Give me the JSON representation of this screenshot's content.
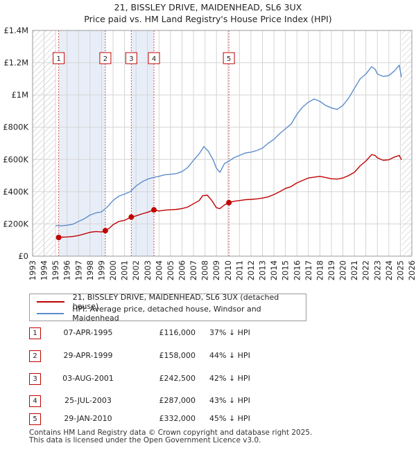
{
  "title_line1": "21, BISSLEY DRIVE, MAIDENHEAD, SL6 3UX",
  "title_line2": "Price paid vs. HM Land Registry's House Price Index (HPI)",
  "legend": {
    "property_label": "21, BISSLEY DRIVE, MAIDENHEAD, SL6 3UX (detached house)",
    "hpi_label": "HPI: Average price, detached house, Windsor and Maidenhead",
    "property_color": "#c00000",
    "hpi_color": "#5b8ccc"
  },
  "transactions": [
    {
      "num": "1",
      "date": "07-APR-1995",
      "price": "£116,000",
      "hpi": "37% ↓ HPI"
    },
    {
      "num": "2",
      "date": "29-APR-1999",
      "price": "£158,000",
      "hpi": "44% ↓ HPI"
    },
    {
      "num": "3",
      "date": "03-AUG-2001",
      "price": "£242,500",
      "hpi": "42% ↓ HPI"
    },
    {
      "num": "4",
      "date": "25-JUL-2003",
      "price": "£287,000",
      "hpi": "43% ↓ HPI"
    },
    {
      "num": "5",
      "date": "29-JAN-2010",
      "price": "£332,000",
      "hpi": "45% ↓ HPI"
    }
  ],
  "footer_line1": "Contains HM Land Registry data © Crown copyright and database right 2025.",
  "footer_line2": "This data is licensed under the Open Government Licence v3.0.",
  "chart_data": {
    "type": "line",
    "title": "21, BISSLEY DRIVE, MAIDENHEAD, SL6 3UX",
    "subtitle": "Price paid vs. HM Land Registry's House Price Index (HPI)",
    "xlim": [
      1993,
      2026
    ],
    "ylim": [
      0,
      1400000
    ],
    "x_ticks": [
      1993,
      1994,
      1995,
      1996,
      1997,
      1998,
      1999,
      2000,
      2001,
      2002,
      2003,
      2004,
      2005,
      2006,
      2007,
      2008,
      2009,
      2010,
      2011,
      2012,
      2013,
      2014,
      2015,
      2016,
      2017,
      2018,
      2019,
      2020,
      2021,
      2022,
      2023,
      2024,
      2025,
      2026
    ],
    "y_ticks": [
      0,
      200000,
      400000,
      600000,
      800000,
      1000000,
      1200000,
      1400000
    ],
    "y_tick_labels": [
      "£0",
      "£200K",
      "£400K",
      "£600K",
      "£800K",
      "£1M",
      "£1.2M",
      "£1.4M"
    ],
    "hatched_ranges": [
      [
        1993,
        1995.0
      ],
      [
        2025.1,
        2026
      ]
    ],
    "shaded_ranges": [
      [
        1995.27,
        1999.33
      ],
      [
        2001.59,
        2003.56
      ]
    ],
    "series": [
      {
        "name": "21, BISSLEY DRIVE, MAIDENHEAD, SL6 3UX (detached house)",
        "color": "#c00000",
        "points": [
          [
            1995.27,
            116000
          ],
          [
            1995.6,
            118000
          ],
          [
            1996.0,
            119000
          ],
          [
            1996.5,
            122000
          ],
          [
            1997.0,
            128000
          ],
          [
            1997.5,
            138000
          ],
          [
            1998.0,
            148000
          ],
          [
            1998.5,
            153000
          ],
          [
            1999.0,
            150000
          ],
          [
            1999.33,
            158000
          ],
          [
            1999.7,
            175000
          ],
          [
            2000.0,
            195000
          ],
          [
            2000.5,
            215000
          ],
          [
            2001.0,
            222000
          ],
          [
            2001.59,
            242500
          ],
          [
            2002.0,
            250000
          ],
          [
            2002.5,
            262000
          ],
          [
            2003.0,
            272000
          ],
          [
            2003.56,
            287000
          ],
          [
            2004.0,
            280000
          ],
          [
            2004.5,
            285000
          ],
          [
            2005.0,
            288000
          ],
          [
            2005.5,
            290000
          ],
          [
            2006.0,
            295000
          ],
          [
            2006.5,
            305000
          ],
          [
            2007.0,
            325000
          ],
          [
            2007.5,
            345000
          ],
          [
            2007.8,
            375000
          ],
          [
            2008.2,
            378000
          ],
          [
            2008.6,
            345000
          ],
          [
            2009.0,
            300000
          ],
          [
            2009.3,
            295000
          ],
          [
            2009.7,
            318000
          ],
          [
            2010.08,
            332000
          ],
          [
            2010.5,
            340000
          ],
          [
            2011.0,
            345000
          ],
          [
            2011.5,
            350000
          ],
          [
            2012.0,
            352000
          ],
          [
            2012.5,
            355000
          ],
          [
            2013.0,
            360000
          ],
          [
            2013.5,
            368000
          ],
          [
            2014.0,
            382000
          ],
          [
            2014.5,
            400000
          ],
          [
            2015.0,
            420000
          ],
          [
            2015.5,
            432000
          ],
          [
            2016.0,
            455000
          ],
          [
            2016.5,
            470000
          ],
          [
            2017.0,
            485000
          ],
          [
            2017.5,
            490000
          ],
          [
            2018.0,
            495000
          ],
          [
            2018.5,
            488000
          ],
          [
            2019.0,
            480000
          ],
          [
            2019.5,
            478000
          ],
          [
            2020.0,
            485000
          ],
          [
            2020.5,
            500000
          ],
          [
            2021.0,
            520000
          ],
          [
            2021.5,
            560000
          ],
          [
            2022.0,
            590000
          ],
          [
            2022.5,
            630000
          ],
          [
            2022.8,
            625000
          ],
          [
            2023.0,
            610000
          ],
          [
            2023.5,
            595000
          ],
          [
            2024.0,
            598000
          ],
          [
            2024.5,
            615000
          ],
          [
            2024.9,
            625000
          ],
          [
            2025.1,
            598000
          ]
        ]
      },
      {
        "name": "HPI: Average price, detached house, Windsor and Maidenhead",
        "color": "#5b8ccc",
        "points": [
          [
            1995.0,
            190000
          ],
          [
            1995.5,
            188000
          ],
          [
            1996.0,
            192000
          ],
          [
            1996.5,
            198000
          ],
          [
            1997.0,
            215000
          ],
          [
            1997.5,
            232000
          ],
          [
            1998.0,
            255000
          ],
          [
            1998.5,
            268000
          ],
          [
            1999.0,
            275000
          ],
          [
            1999.5,
            305000
          ],
          [
            2000.0,
            345000
          ],
          [
            2000.5,
            372000
          ],
          [
            2001.0,
            385000
          ],
          [
            2001.5,
            400000
          ],
          [
            2002.0,
            435000
          ],
          [
            2002.5,
            460000
          ],
          [
            2003.0,
            478000
          ],
          [
            2003.5,
            488000
          ],
          [
            2004.0,
            495000
          ],
          [
            2004.5,
            505000
          ],
          [
            2005.0,
            508000
          ],
          [
            2005.5,
            512000
          ],
          [
            2006.0,
            525000
          ],
          [
            2006.5,
            550000
          ],
          [
            2007.0,
            595000
          ],
          [
            2007.5,
            635000
          ],
          [
            2007.9,
            680000
          ],
          [
            2008.3,
            650000
          ],
          [
            2008.7,
            600000
          ],
          [
            2009.0,
            545000
          ],
          [
            2009.3,
            520000
          ],
          [
            2009.7,
            575000
          ],
          [
            2010.1,
            590000
          ],
          [
            2010.5,
            610000
          ],
          [
            2011.0,
            625000
          ],
          [
            2011.5,
            640000
          ],
          [
            2012.0,
            645000
          ],
          [
            2012.5,
            655000
          ],
          [
            2013.0,
            670000
          ],
          [
            2013.5,
            700000
          ],
          [
            2014.0,
            725000
          ],
          [
            2014.5,
            760000
          ],
          [
            2015.0,
            790000
          ],
          [
            2015.5,
            820000
          ],
          [
            2016.0,
            880000
          ],
          [
            2016.5,
            925000
          ],
          [
            2017.0,
            955000
          ],
          [
            2017.5,
            975000
          ],
          [
            2018.0,
            960000
          ],
          [
            2018.5,
            935000
          ],
          [
            2019.0,
            920000
          ],
          [
            2019.5,
            910000
          ],
          [
            2020.0,
            935000
          ],
          [
            2020.5,
            980000
          ],
          [
            2021.0,
            1040000
          ],
          [
            2021.5,
            1100000
          ],
          [
            2022.0,
            1130000
          ],
          [
            2022.5,
            1175000
          ],
          [
            2022.8,
            1160000
          ],
          [
            2023.0,
            1130000
          ],
          [
            2023.5,
            1115000
          ],
          [
            2024.0,
            1120000
          ],
          [
            2024.5,
            1150000
          ],
          [
            2024.9,
            1185000
          ],
          [
            2025.1,
            1110000
          ]
        ]
      }
    ],
    "sale_points": [
      {
        "num": "1",
        "x": 1995.27,
        "y": 116000
      },
      {
        "num": "2",
        "x": 1999.33,
        "y": 158000
      },
      {
        "num": "3",
        "x": 2001.59,
        "y": 242500
      },
      {
        "num": "4",
        "x": 2003.56,
        "y": 287000
      },
      {
        "num": "5",
        "x": 2010.08,
        "y": 332000
      }
    ]
  }
}
